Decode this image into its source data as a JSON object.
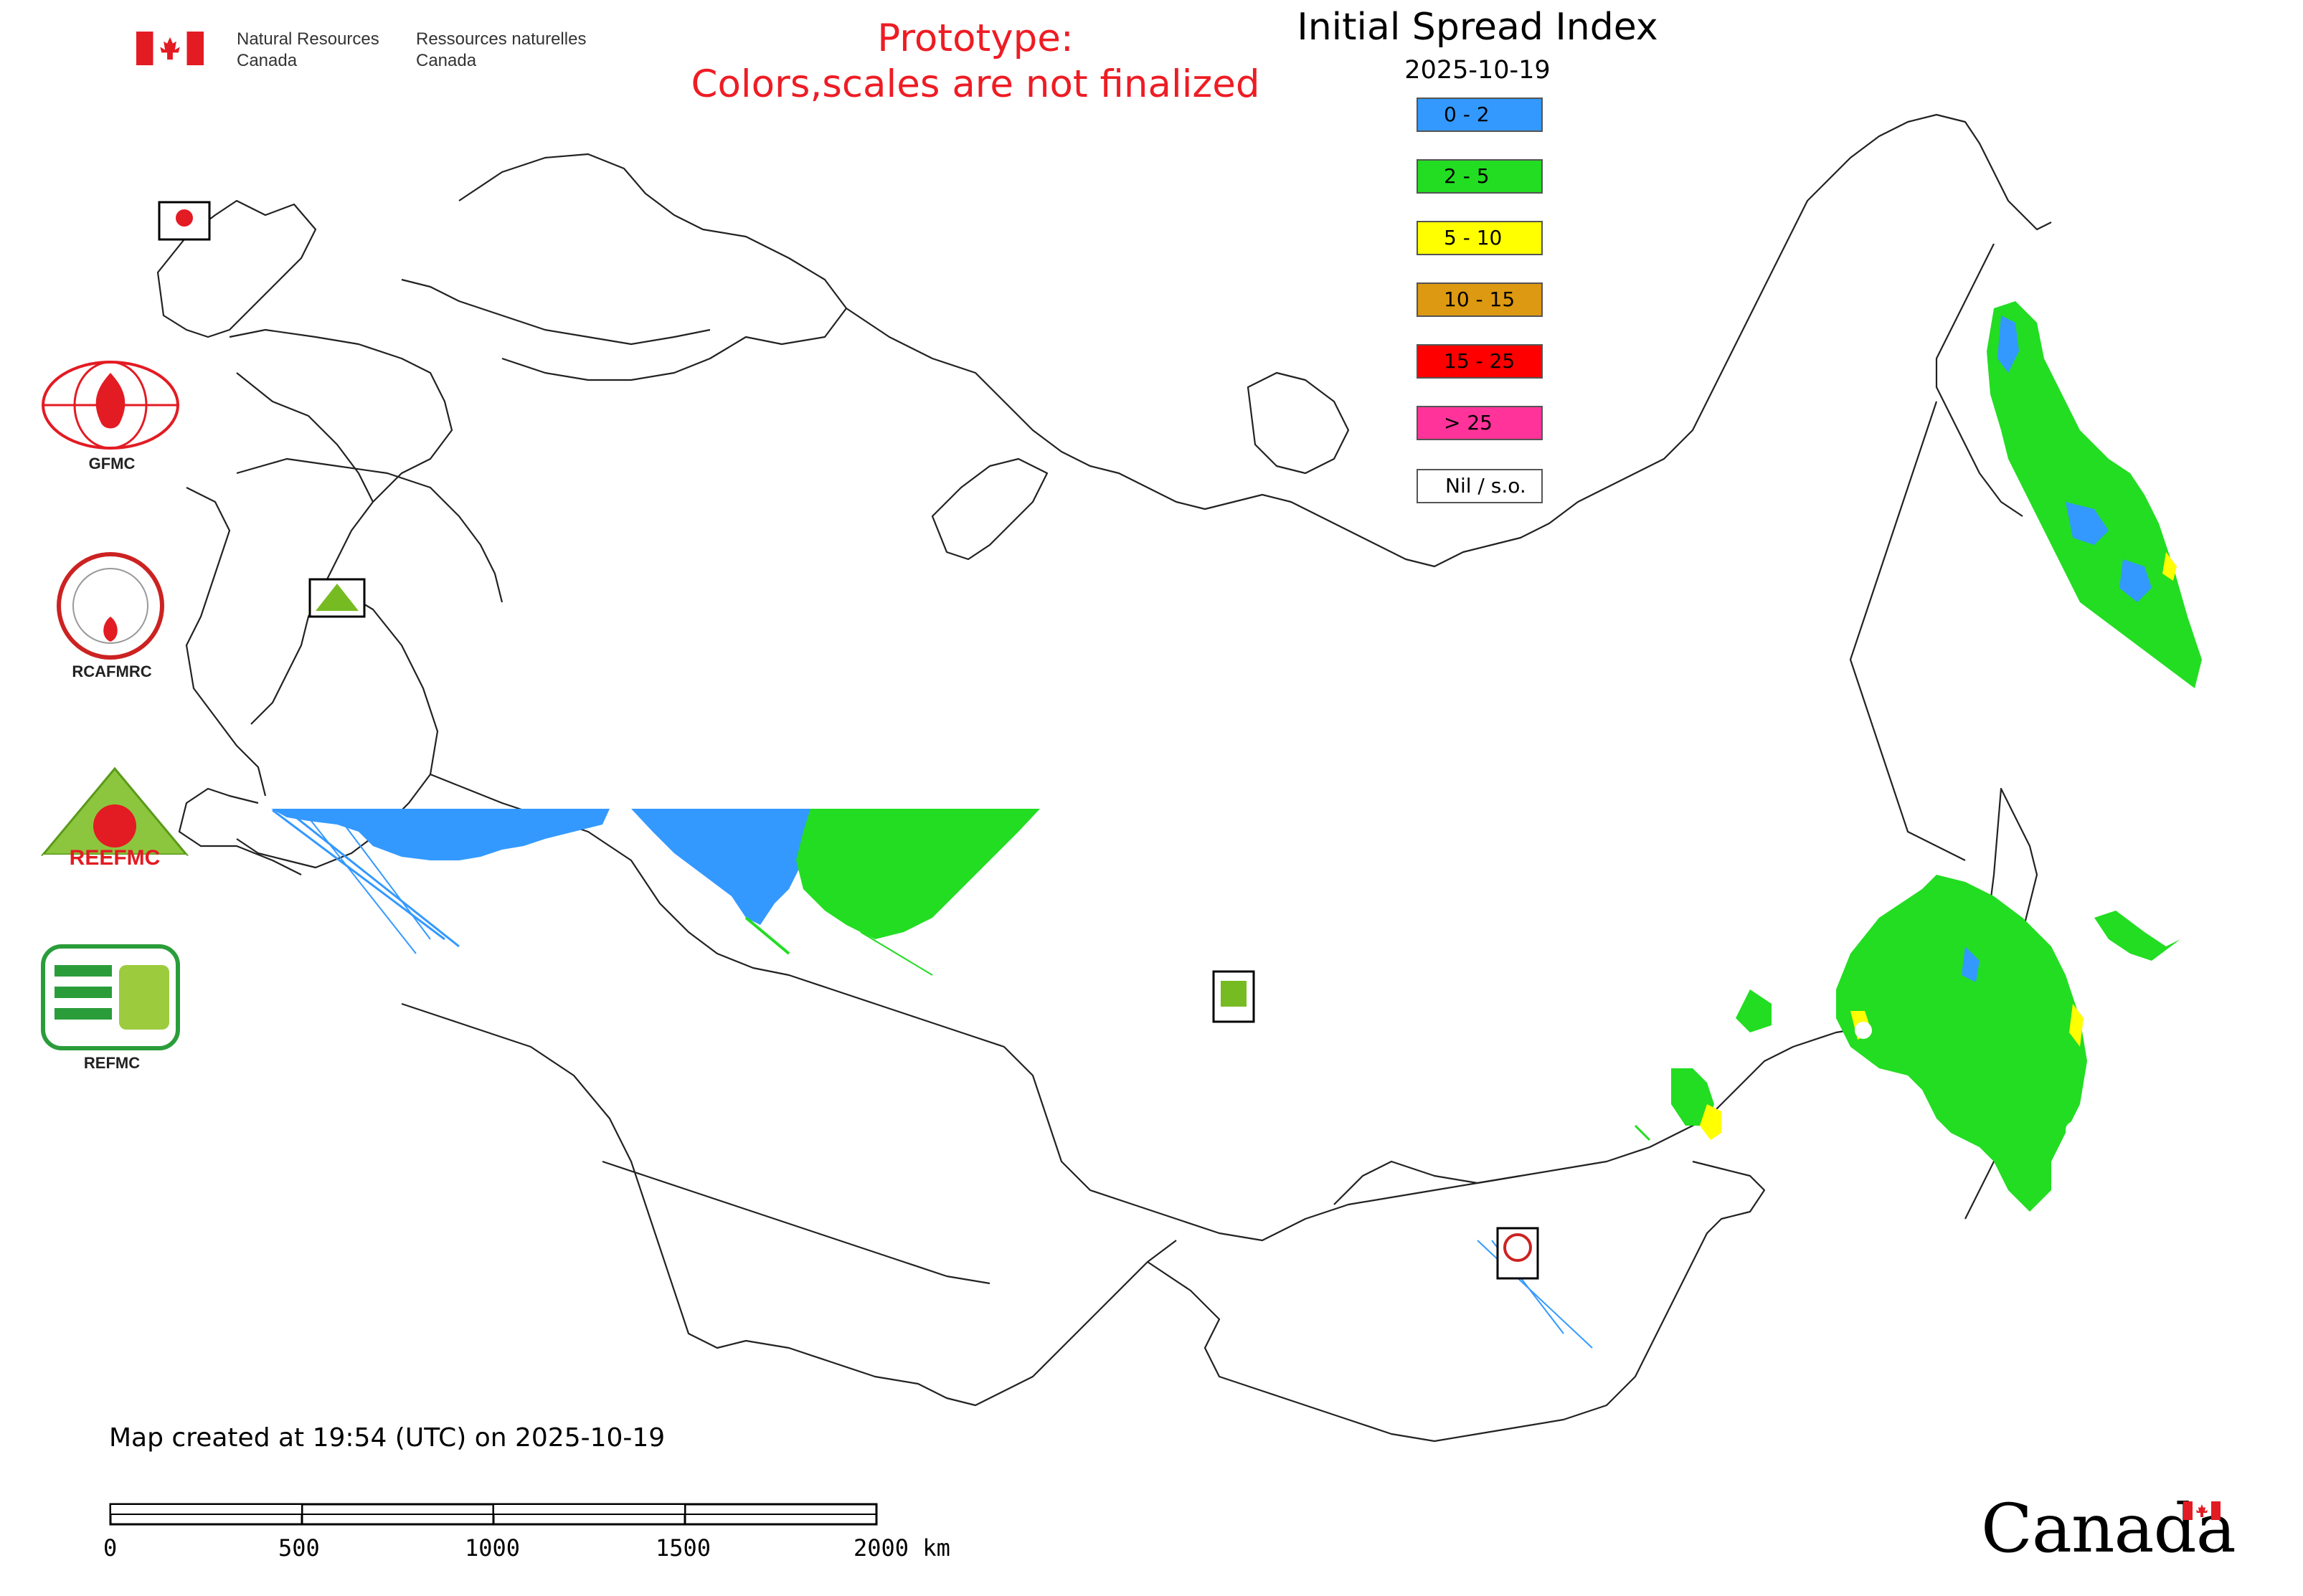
{
  "header": {
    "gov_en_line1": "Natural Resources",
    "gov_en_line2": "Canada",
    "gov_fr_line1": "Ressources naturelles",
    "gov_fr_line2": "Canada",
    "prototype_line1": "Prototype:",
    "prototype_line2": "Colors,scales are not finalized"
  },
  "map": {
    "title": "Initial Spread Index",
    "date": "2025-10-19",
    "legend": [
      {
        "label": "0 - 2",
        "color": "#3399ff"
      },
      {
        "label": "2 - 5",
        "color": "#22dd22"
      },
      {
        "label": "5 - 10",
        "color": "#ffff00"
      },
      {
        "label": "10 - 15",
        "color": "#dd9911"
      },
      {
        "label": "15 - 25",
        "color": "#ff0000"
      },
      {
        "label": "> 25",
        "color": "#ff3399"
      },
      {
        "label": "Nil / s.o.",
        "color": "#ffffff"
      }
    ]
  },
  "logos": {
    "gfmc": "GFMC",
    "rcafmrc": "RCAFMRC",
    "reefmc": "REEFMC",
    "refmc": "REFMC"
  },
  "footer": {
    "created": "Map created at 19:54 (UTC) on 2025-10-19",
    "scale_ticks": [
      "0",
      "500",
      "1000",
      "1500",
      "2000 km"
    ],
    "wordmark": "Canada"
  },
  "icons": {
    "flag": "canada-flag-icon",
    "fire": "fire-icon"
  }
}
